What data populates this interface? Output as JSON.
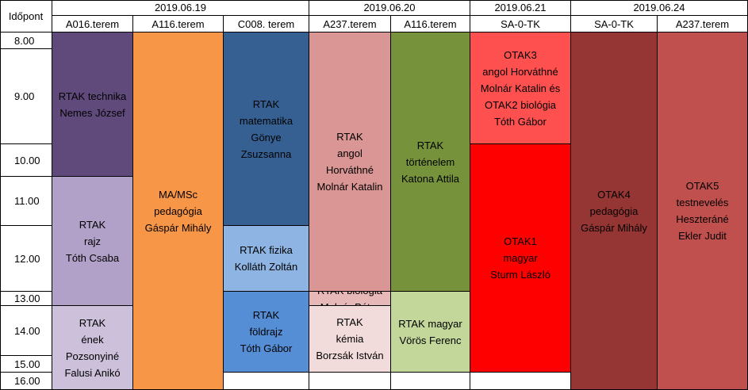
{
  "corner_label": "Időpont",
  "dates": [
    {
      "label": "2019.06.19",
      "span": [
        1,
        3
      ]
    },
    {
      "label": "2019.06.20",
      "span": [
        4,
        5
      ]
    },
    {
      "label": "2019.06.21",
      "span": [
        6,
        6
      ]
    },
    {
      "label": "2019.06.24",
      "span": [
        7,
        8
      ]
    }
  ],
  "rooms": [
    "A016.terem",
    "A116.terem",
    "C008. terem",
    "A237.terem",
    "A116.terem",
    "SA-0-TK",
    "SA-0-TK",
    "A237.terem"
  ],
  "times": [
    "8.00",
    "9.00",
    "10.00",
    "11.00",
    "12.00",
    "13.00",
    "14.00",
    "15.00",
    "16.00"
  ],
  "blocks": [
    {
      "col": 1,
      "from": 0,
      "to": 3,
      "color": "#604a7b",
      "lines": [
        "RTAK technika",
        "Nemes József"
      ]
    },
    {
      "col": 1,
      "from": 3,
      "to": 6,
      "color": "#b1a0c7",
      "lines": [
        "RTAK",
        "rajz",
        "Tóth Csaba"
      ]
    },
    {
      "col": 1,
      "from": 6,
      "to": 9,
      "color": "#ccc0da",
      "lines": [
        "RTAK",
        "ének",
        "Pozsonyiné",
        "Falusi Anikó"
      ]
    },
    {
      "col": 2,
      "from": 0,
      "to": 9,
      "color": "#f79646",
      "lines": [
        "MA/MSc",
        "pedagógia",
        "Gáspár Mihály"
      ]
    },
    {
      "col": 3,
      "from": 0,
      "to": 4,
      "color": "#366092",
      "lines": [
        "RTAK",
        "matematika",
        "Gönye",
        "Zsuzsanna"
      ]
    },
    {
      "col": 3,
      "from": 4,
      "to": 5,
      "color": "#8db4e2",
      "lines": [
        "RTAK fizika",
        "Kolláth Zoltán"
      ]
    },
    {
      "col": 3,
      "from": 5,
      "to": 8,
      "color": "#558ed5",
      "lines": [
        "RTAK",
        "földrajz",
        "Tóth Gábor"
      ]
    },
    {
      "col": 4,
      "from": 0,
      "to": 5,
      "color": "#da9694",
      "lines": [
        "RTAK",
        "angol",
        "Horváthné",
        "Molnár Katalin"
      ]
    },
    {
      "col": 4,
      "from": 5,
      "to": 6,
      "color": "#e6b8b7",
      "lines": [
        "RTAK biológia",
        "Molnár Péter"
      ]
    },
    {
      "col": 4,
      "from": 6,
      "to": 8,
      "color": "#f2dcdb",
      "lines": [
        "RTAK",
        "kémia",
        "Borzsák István"
      ]
    },
    {
      "col": 5,
      "from": 0,
      "to": 5,
      "color": "#76933c",
      "lines": [
        "RTAK",
        "történelem",
        "Katona Attila"
      ]
    },
    {
      "col": 5,
      "from": 5,
      "to": 8,
      "color": "#c4d79b",
      "lines": [
        "RTAK magyar",
        "Vörös Ferenc"
      ]
    },
    {
      "col": 6,
      "from": 0,
      "to": 2,
      "color": "#ff5050",
      "lines": [
        "OTAK3",
        "angol Horváthné",
        "Molnár Katalin és",
        "OTAK2 biológia",
        "Tóth Gábor"
      ]
    },
    {
      "col": 6,
      "from": 2,
      "to": 8,
      "color": "#ff0000",
      "lines": [
        "OTAK1",
        "magyar",
        "Sturm László"
      ]
    },
    {
      "col": 7,
      "from": 0,
      "to": 9,
      "color": "#963634",
      "lines": [
        "OTAK4",
        "pedagógia",
        "Gáspár Mihály"
      ]
    },
    {
      "col": 8,
      "from": 0,
      "to": 9,
      "color": "#c0504d",
      "lines": [
        "OTAK5",
        "testnevelés",
        "Heszteráné",
        "Ekler Judit"
      ]
    }
  ]
}
